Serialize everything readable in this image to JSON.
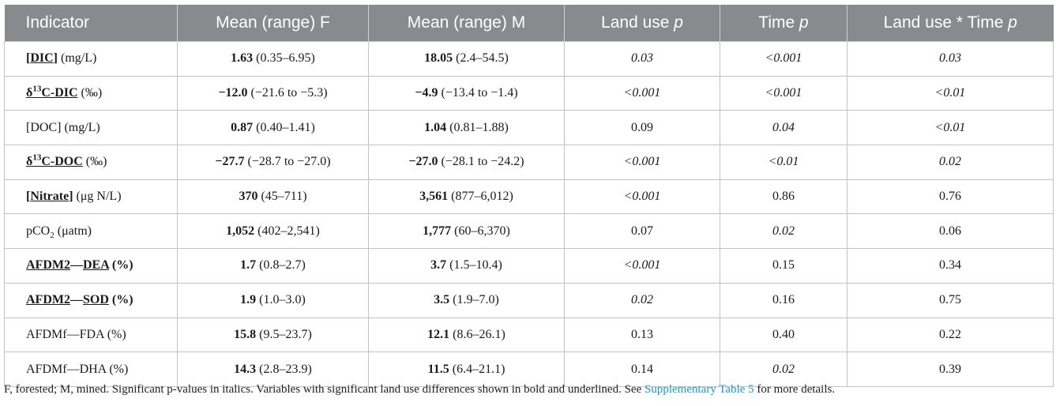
{
  "headers": [
    "Indicator",
    "Mean (range) F",
    "Mean (range) M",
    "Land use ",
    "Time ",
    "Land use * Time "
  ],
  "p_symbol": "p",
  "rows": [
    {
      "ind_pre": "",
      "ind_sym": "[",
      "ind_main": "DIC",
      "ind_sym2": "]",
      "ind_sup": "",
      "ind_sub": "",
      "ind_post": "",
      "ind_unit": " (mg/L)",
      "f_mean": "1.63",
      "f_range": " (0.35–6.95)",
      "m_mean": "18.05",
      "m_range": " (2.4–54.5)",
      "lu": "0.03",
      "t": "<0.001",
      "lut": "0.03"
    },
    {
      "ind_pre": "δ",
      "ind_sym": "",
      "ind_main": "",
      "ind_sym2": "",
      "ind_sup": "13",
      "ind_sub": "",
      "ind_post": "C-DIC",
      "ind_unit": " (‰)",
      "f_mean": "−12.0",
      "f_range": " (−21.6 to −5.3)",
      "m_mean": "−4.9",
      "m_range": " (−13.4 to −1.4)",
      "lu": "<0.001",
      "t": "<0.001",
      "lut": "<0.01"
    },
    {
      "ind_text": "[DOC] (mg/L)",
      "f_mean": "0.87",
      "f_range": " (0.40–1.41)",
      "m_mean": "1.04",
      "m_range": " (0.81–1.88)",
      "lu": "0.09",
      "t": "0.04",
      "lut": "<0.01"
    },
    {
      "ind_pre": "δ",
      "ind_sym": "",
      "ind_main": "",
      "ind_sym2": "",
      "ind_sup": "13",
      "ind_sub": "",
      "ind_post": "C-DOC",
      "ind_unit": " (‰)",
      "f_mean": "−27.7",
      "f_range": " (−28.7 to −27.0)",
      "m_mean": "−27.0",
      "m_range": " (−28.1 to −24.2)",
      "lu": "<0.001",
      "t": "<0.01",
      "lut": "0.02"
    },
    {
      "ind_pre": "",
      "ind_sym": "[",
      "ind_main": "Nitrate",
      "ind_sym2": "]",
      "ind_sup": "",
      "ind_sub": "",
      "ind_post": "",
      "ind_unit": " (μg N/L)",
      "f_mean": "370",
      "f_range": " (45–711)",
      "m_mean": "3,561",
      "m_range": " (877–6,012)",
      "lu": "<0.001",
      "t": "0.86",
      "lut": "0.76"
    },
    {
      "ind_text_pre": "pCO",
      "ind_text_sub": "2",
      "ind_text_post": " (μatm)",
      "f_mean": "1,052",
      "f_range": " (402–2,541)",
      "m_mean": "1,777",
      "m_range": " (60–6,370)",
      "lu": "0.07",
      "t": "0.02",
      "lut": "0.06"
    },
    {
      "ind_a": "AFDM2",
      "ind_dash": "—",
      "ind_b": "DEA",
      "ind_unit": " (%)",
      "f_mean": "1.7",
      "f_range": " (0.8–2.7)",
      "m_mean": "3.7",
      "m_range": " (1.5–10.4)",
      "lu": "<0.001",
      "t": "0.15",
      "lut": "0.34"
    },
    {
      "ind_a": "AFDM2",
      "ind_dash": "—",
      "ind_b": "SOD",
      "ind_unit": " (%)",
      "f_mean": "1.9",
      "f_range": " (1.0–3.0)",
      "m_mean": "3.5",
      "m_range": " (1.9–7.0)",
      "lu": "0.02",
      "t": "0.16",
      "lut": "0.75"
    },
    {
      "ind_text": "AFDMf—FDA (%)",
      "f_mean": "15.8",
      "f_range": " (9.5–23.7)",
      "m_mean": "12.1",
      "m_range": " (8.6–26.1)",
      "lu": "0.13",
      "t": "0.40",
      "lut": "0.22"
    },
    {
      "ind_text": "AFDMf—DHA (%)",
      "f_mean": "14.3",
      "f_range": " (2.8–23.9)",
      "m_mean": "11.5",
      "m_range": " (6.4–21.1)",
      "lu": "0.14",
      "t": "0.02",
      "lut": "0.39"
    }
  ],
  "footnote": {
    "text": "F, forested; M, mined. Significant p-values in italics. Variables with significant land use differences shown in bold and underlined. See ",
    "link": "Supplementary Table 5",
    "tail": " for more details."
  }
}
